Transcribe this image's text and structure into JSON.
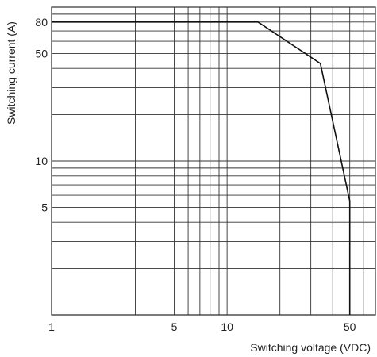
{
  "chart_data": {
    "type": "line",
    "title": "",
    "xlabel": "Switching voltage (VDC)",
    "ylabel": "Switching current (A)",
    "xscale": "log",
    "yscale": "log",
    "xlim": [
      1,
      70
    ],
    "ylim": [
      1,
      100
    ],
    "x_tick_labels": [
      {
        "value": 1,
        "label": "1"
      },
      {
        "value": 5,
        "label": "5"
      },
      {
        "value": 10,
        "label": "10"
      },
      {
        "value": 50,
        "label": "50"
      }
    ],
    "y_tick_labels": [
      {
        "value": 80,
        "label": "80"
      },
      {
        "value": 50,
        "label": "50"
      },
      {
        "value": 10,
        "label": "10"
      },
      {
        "value": 5,
        "label": "5"
      }
    ],
    "x_gridlines": [
      3,
      5,
      6,
      7,
      8,
      9,
      10,
      20,
      30,
      40,
      50,
      60,
      70
    ],
    "y_gridlines": [
      2,
      3,
      4,
      5,
      6,
      7,
      8,
      9,
      10,
      20,
      30,
      40,
      50,
      60,
      70,
      80,
      90,
      100
    ],
    "grid": true,
    "series": [
      {
        "color": "#111111",
        "x": [
          1,
          15,
          34,
          50,
          50
        ],
        "y": [
          80,
          80,
          43,
          5.5,
          1
        ]
      }
    ]
  }
}
